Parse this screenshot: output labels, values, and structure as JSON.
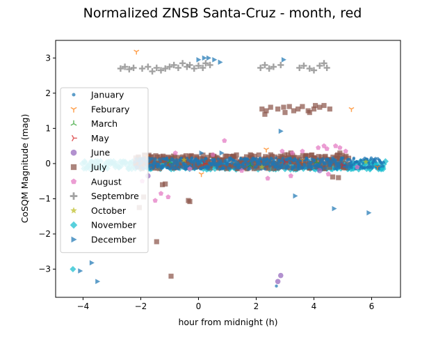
{
  "chart_data": {
    "type": "scatter",
    "title": "Normalized ZNSB Santa-Cruz - month, red",
    "xlabel": "hour from midnight (h)",
    "ylabel": "CoSQM Magnitude (mag)",
    "xlim": [
      -4.95,
      7.0
    ],
    "ylim": [
      -3.8,
      3.5
    ],
    "xticks": [
      -4,
      -2,
      0,
      2,
      4,
      6
    ],
    "yticks": [
      -3,
      -2,
      -1,
      0,
      1,
      2,
      3
    ],
    "grid": false,
    "legend_position": "left-center",
    "series": [
      {
        "name": "January",
        "marker": "circle-small",
        "color": "#1f77b4",
        "band": {
          "x_start": -2.2,
          "x_end": 6.4,
          "y_center": 0.0,
          "y_spread": 0.16
        },
        "points": [
          [
            2.7,
            -3.48
          ],
          [
            -2.1,
            -0.1
          ],
          [
            0.5,
            0.1
          ]
        ]
      },
      {
        "name": "Feburary",
        "marker": "tri-down",
        "color": "#ff7f0e",
        "points": [
          [
            -2.15,
            3.18
          ],
          [
            5.3,
            1.55
          ],
          [
            2.35,
            0.4
          ],
          [
            0.1,
            -0.3
          ],
          [
            -1.8,
            0.2
          ],
          [
            3.6,
            0.1
          ],
          [
            6.2,
            -0.1
          ]
        ]
      },
      {
        "name": "March",
        "marker": "tri-up",
        "color": "#2ca02c",
        "points": [
          [
            -1.0,
            0.05
          ],
          [
            1.8,
            -0.05
          ],
          [
            4.1,
            0.05
          ]
        ]
      },
      {
        "name": "May",
        "marker": "tri-right",
        "color": "#d62728",
        "points": [
          [
            0.2,
            0.0
          ],
          [
            3.0,
            0.05
          ],
          [
            5.0,
            -0.05
          ]
        ]
      },
      {
        "name": "June",
        "marker": "circle",
        "color": "#9467bd",
        "points": [
          [
            -1.75,
            -0.35
          ],
          [
            2.85,
            -3.18
          ],
          [
            2.75,
            -3.35
          ],
          [
            4.2,
            -0.2
          ]
        ]
      },
      {
        "name": "July",
        "marker": "square",
        "color": "#8c564b",
        "band": {
          "x_start": -2.2,
          "x_end": 5.2,
          "y_center": 0.05,
          "y_spread": 0.2
        },
        "points": [
          [
            -1.45,
            -2.22
          ],
          [
            -0.95,
            -3.2
          ],
          [
            -0.35,
            -1.05
          ],
          [
            -0.3,
            -1.08
          ],
          [
            -1.25,
            -0.6
          ],
          [
            -1.15,
            -0.58
          ],
          [
            -2.05,
            -1.25
          ],
          [
            -1.9,
            -0.95
          ],
          [
            4.65,
            -0.38
          ],
          [
            4.85,
            -0.4
          ],
          [
            2.2,
            1.55
          ],
          [
            2.35,
            1.5
          ],
          [
            2.5,
            1.6
          ],
          [
            2.75,
            1.55
          ],
          [
            2.95,
            1.6
          ],
          [
            3.15,
            1.62
          ],
          [
            3.3,
            1.5
          ],
          [
            3.45,
            1.55
          ],
          [
            3.6,
            1.62
          ],
          [
            3.8,
            1.5
          ],
          [
            4.0,
            1.55
          ],
          [
            4.2,
            1.6
          ],
          [
            4.35,
            1.65
          ],
          [
            4.55,
            1.55
          ],
          [
            2.3,
            1.4
          ],
          [
            3.0,
            1.45
          ],
          [
            3.85,
            1.45
          ],
          [
            4.05,
            1.65
          ],
          [
            1.8,
            0.25
          ],
          [
            3.2,
            0.3
          ],
          [
            4.9,
            0.3
          ]
        ]
      },
      {
        "name": "August",
        "marker": "pentagon",
        "color": "#e377c2",
        "points": [
          [
            0.9,
            0.65
          ],
          [
            0.5,
            0.25
          ],
          [
            -0.8,
            0.3
          ],
          [
            2.9,
            0.35
          ],
          [
            3.25,
            0.3
          ],
          [
            3.6,
            0.35
          ],
          [
            4.15,
            0.45
          ],
          [
            4.35,
            0.5
          ],
          [
            4.45,
            0.42
          ],
          [
            4.75,
            0.5
          ],
          [
            4.9,
            0.45
          ],
          [
            5.1,
            0.35
          ],
          [
            3.2,
            -0.35
          ],
          [
            4.5,
            -0.3
          ],
          [
            2.4,
            -0.42
          ],
          [
            -1.3,
            -0.85
          ],
          [
            -1.05,
            -0.95
          ],
          [
            -1.5,
            -1.05
          ],
          [
            -1.95,
            -0.5
          ],
          [
            1.5,
            -0.2
          ],
          [
            -0.3,
            -0.15
          ],
          [
            5.5,
            -0.1
          ]
        ]
      },
      {
        "name": "Septembre",
        "marker": "plus",
        "color": "#7f7f7f",
        "points": [
          [
            -2.7,
            2.7
          ],
          [
            -2.55,
            2.75
          ],
          [
            -2.4,
            2.68
          ],
          [
            -2.25,
            2.72
          ],
          [
            -1.95,
            2.7
          ],
          [
            -1.75,
            2.75
          ],
          [
            -1.6,
            2.62
          ],
          [
            -1.45,
            2.72
          ],
          [
            -1.3,
            2.65
          ],
          [
            -1.15,
            2.7
          ],
          [
            -1.0,
            2.75
          ],
          [
            -0.85,
            2.8
          ],
          [
            -0.7,
            2.72
          ],
          [
            -0.55,
            2.85
          ],
          [
            -0.4,
            2.75
          ],
          [
            -0.3,
            2.8
          ],
          [
            -0.15,
            2.7
          ],
          [
            0.0,
            2.78
          ],
          [
            0.15,
            2.72
          ],
          [
            0.25,
            2.85
          ],
          [
            0.4,
            2.8
          ],
          [
            2.15,
            2.72
          ],
          [
            2.3,
            2.8
          ],
          [
            2.45,
            2.7
          ],
          [
            2.6,
            2.75
          ],
          [
            2.85,
            2.8
          ],
          [
            3.5,
            2.72
          ],
          [
            3.65,
            2.78
          ],
          [
            3.85,
            2.7
          ],
          [
            4.0,
            2.65
          ],
          [
            4.2,
            2.78
          ],
          [
            4.35,
            2.85
          ],
          [
            4.45,
            2.72
          ]
        ]
      },
      {
        "name": "October",
        "marker": "star",
        "color": "#bcbd22",
        "points": [
          [
            -0.5,
            0.1
          ],
          [
            2.2,
            -0.1
          ],
          [
            5.8,
            0.05
          ]
        ]
      },
      {
        "name": "November",
        "marker": "diamond",
        "color": "#17becf",
        "band": {
          "x_start": -4.0,
          "x_end": 6.5,
          "y_center": -0.05,
          "y_spread": 0.12
        },
        "points": [
          [
            -4.35,
            -3.0
          ]
        ]
      },
      {
        "name": "December",
        "marker": "triangle-right",
        "color": "#1f77b4",
        "points": [
          [
            -4.1,
            -3.05
          ],
          [
            -3.7,
            -2.82
          ],
          [
            -3.5,
            -3.35
          ],
          [
            0.0,
            2.95
          ],
          [
            0.2,
            3.0
          ],
          [
            0.35,
            3.0
          ],
          [
            0.55,
            2.95
          ],
          [
            0.75,
            2.88
          ],
          [
            2.95,
            2.95
          ],
          [
            2.85,
            0.92
          ],
          [
            3.35,
            -0.92
          ],
          [
            4.7,
            -1.28
          ],
          [
            5.9,
            -1.4
          ],
          [
            0.1,
            0.3
          ],
          [
            0.8,
            0.3
          ],
          [
            -0.2,
            0.05
          ]
        ]
      }
    ]
  }
}
